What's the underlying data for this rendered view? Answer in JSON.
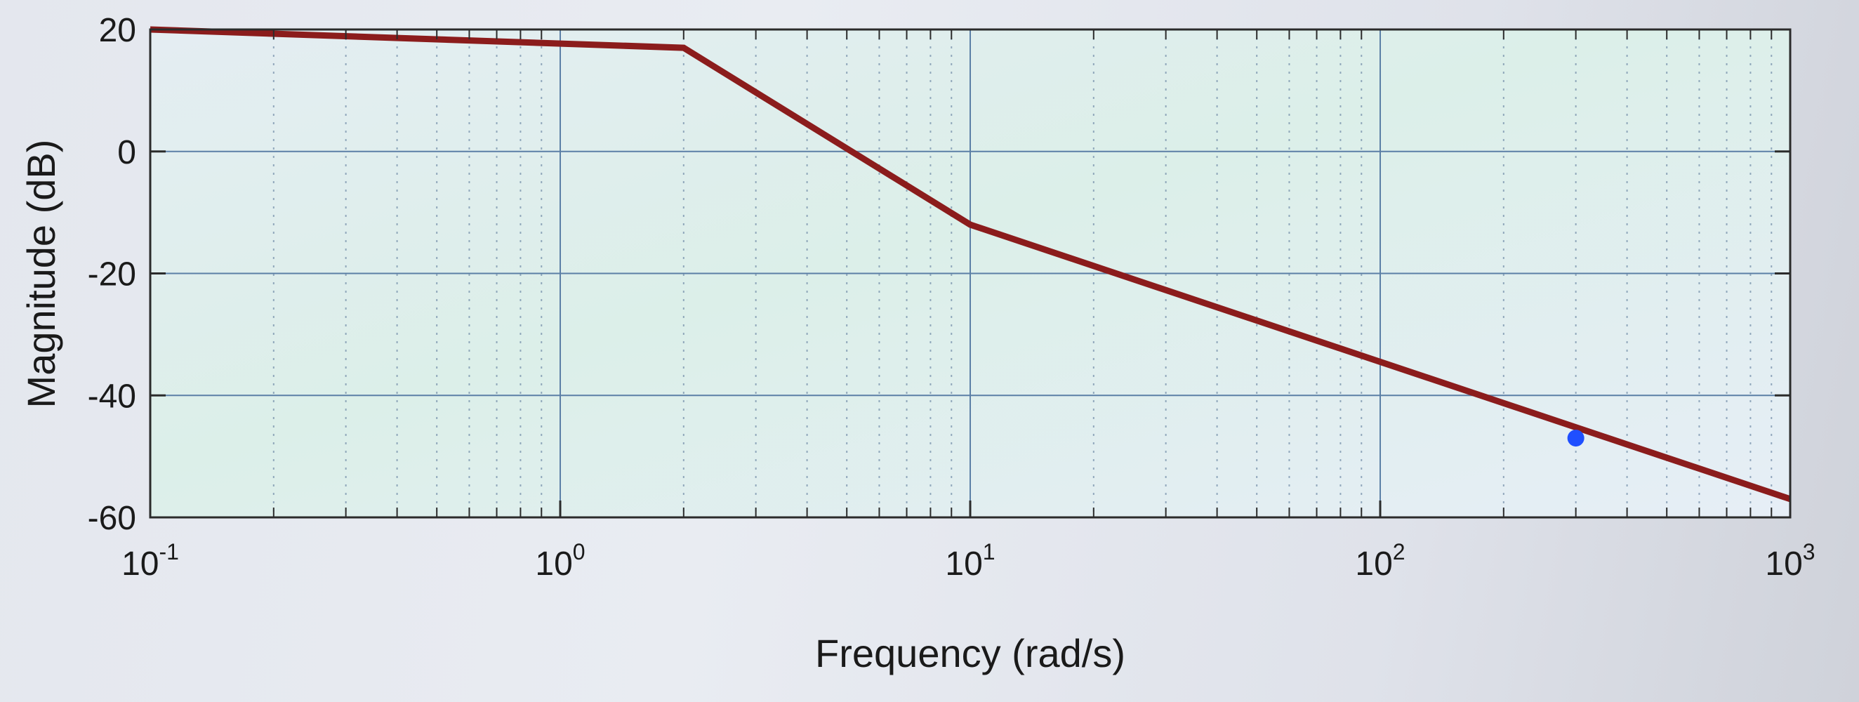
{
  "chart_data": {
    "type": "line",
    "xscale": "log",
    "xlabel": "Frequency (rad/s)",
    "ylabel": "Magnitude (dB)",
    "xlim": [
      0.1,
      1000
    ],
    "ylim": [
      -60,
      20
    ],
    "x_ticks": [
      {
        "base": "10",
        "exp": "-1",
        "value": 0.1
      },
      {
        "base": "10",
        "exp": "0",
        "value": 1
      },
      {
        "base": "10",
        "exp": "1",
        "value": 10
      },
      {
        "base": "10",
        "exp": "2",
        "value": 100
      },
      {
        "base": "10",
        "exp": "3",
        "value": 1000
      }
    ],
    "y_ticks": [
      {
        "label": "20",
        "value": 20
      },
      {
        "label": "0",
        "value": 0
      },
      {
        "label": "-20",
        "value": -20
      },
      {
        "label": "-40",
        "value": -40
      },
      {
        "label": "-60",
        "value": -60
      }
    ],
    "grid": true,
    "series": [
      {
        "color": "#8b1c1c",
        "x": [
          0.1,
          2,
          10,
          1000
        ],
        "y": [
          20,
          17,
          -12,
          -57
        ]
      }
    ],
    "marker": {
      "x": 300,
      "y": -47,
      "color": "#1f4fff"
    }
  }
}
